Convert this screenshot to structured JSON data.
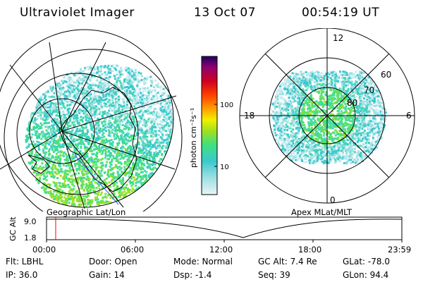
{
  "header": {
    "instrument": "Ultraviolet Imager",
    "date": "13 Oct 07",
    "time": "00:54:19 UT"
  },
  "left_map": {
    "caption": "Geographic Lat/Lon"
  },
  "right_map": {
    "caption": "Apex  MLat/MLT",
    "mlt_labels": {
      "top": "12",
      "right": "6",
      "bottom": "0",
      "left": "18"
    },
    "lat_labels": [
      "60",
      "70",
      "80"
    ]
  },
  "colorbar": {
    "unit_label": "photon cm⁻²s⁻¹",
    "ticks": [
      "100",
      "10"
    ],
    "scale": "log",
    "colors": [
      "#e8f4f8",
      "#9fe0e0",
      "#3cc8d0",
      "#40e080",
      "#a0e020",
      "#f0f000",
      "#ffa000",
      "#ff4000",
      "#d00020",
      "#900070",
      "#200060"
    ]
  },
  "timeline": {
    "ylabel": "GC Alt",
    "yticks": [
      "9.0",
      "1.8"
    ],
    "xticks": [
      "00:00",
      "06:00",
      "12:00",
      "18:00",
      "23:59"
    ],
    "marker_color": "#ff0000"
  },
  "info": {
    "filter": "Flt: LBHL",
    "ip": "IP: 36.0",
    "door": "Door: Open",
    "gain": "Gain: 14",
    "mode": "Mode: Normal",
    "dsp": "Dsp:    -1.4",
    "gc_alt": "GC Alt: 7.4 Re",
    "seq": "Seq: 39",
    "glat": "GLat: -78.0",
    "glon": "GLon:  94.4"
  }
}
